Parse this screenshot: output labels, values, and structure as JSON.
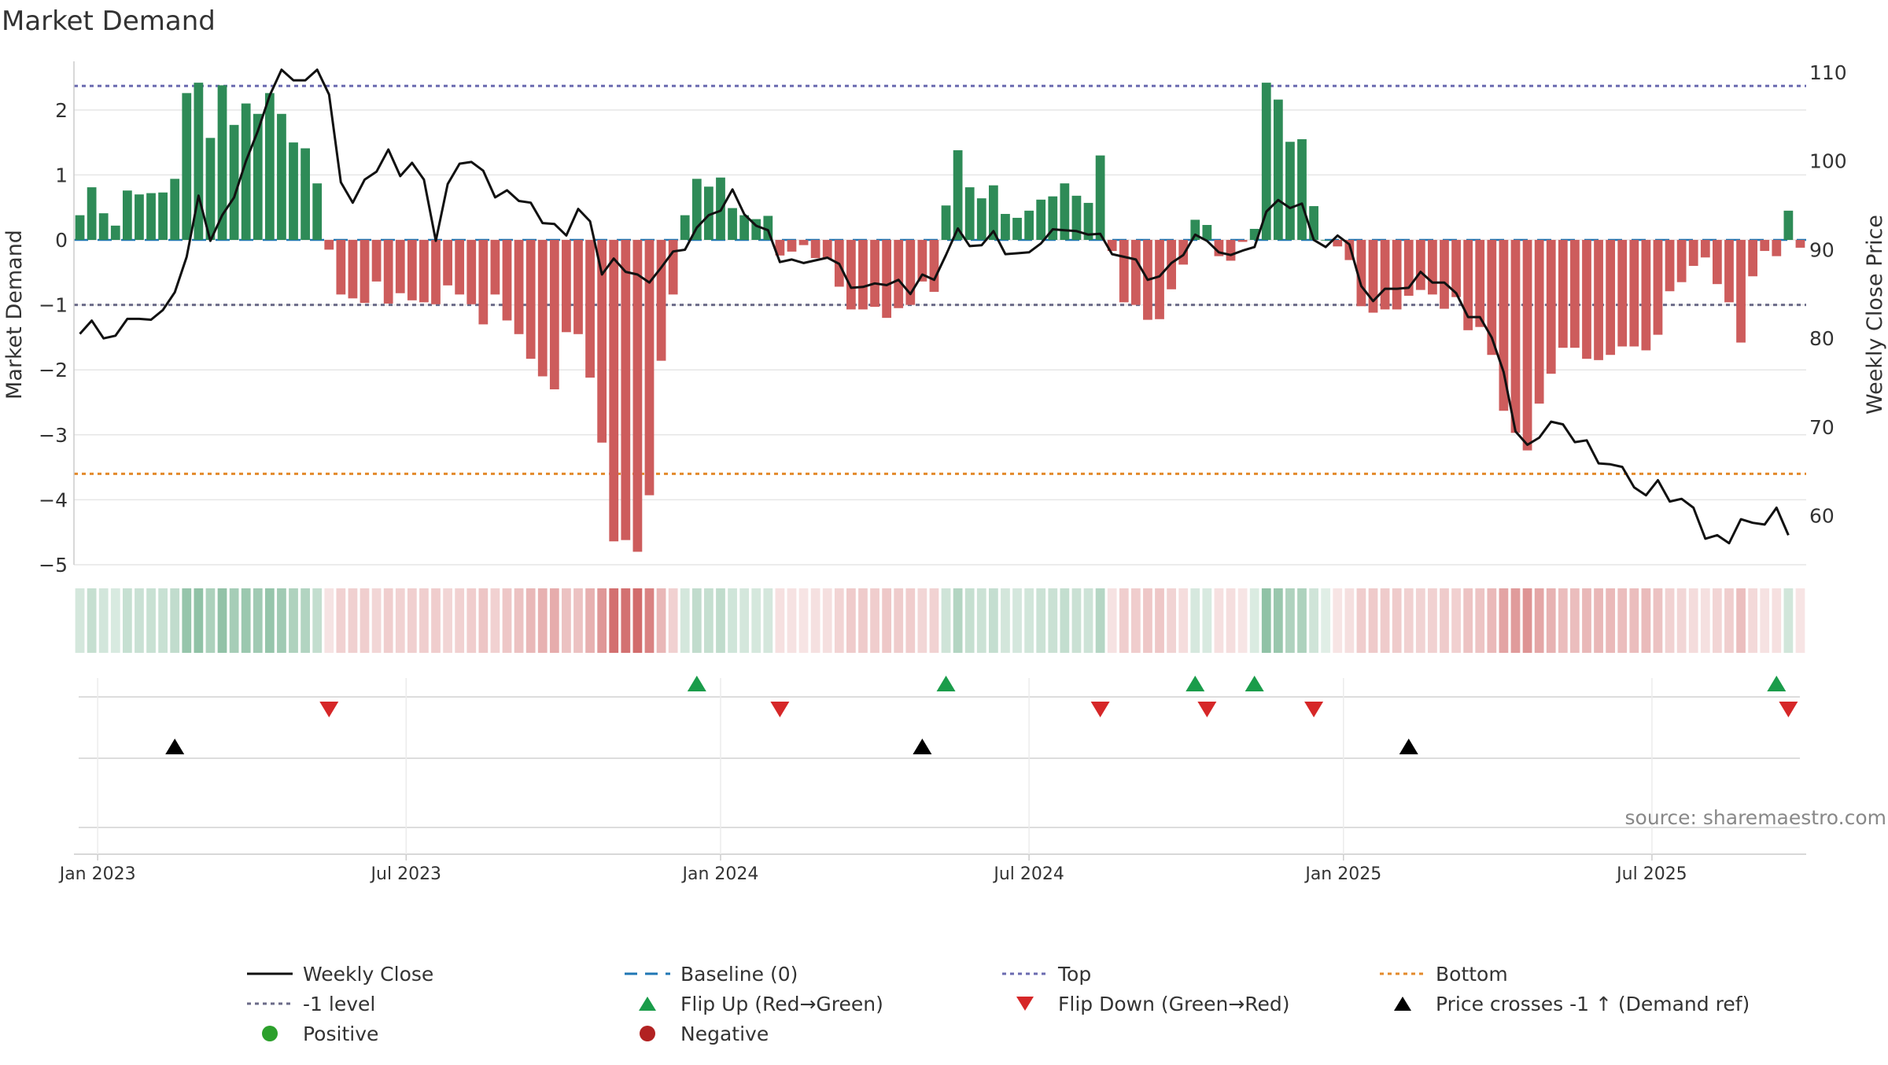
{
  "chart_data": {
    "type": "bar",
    "title": "Market Demand",
    "ylabel_left": "Market Demand",
    "ylabel_right": "Weekly Close Price",
    "ylim_left": [
      -5.0,
      2.7
    ],
    "ylim_right": [
      55,
      110
    ],
    "yticks_left": [
      2,
      1,
      0,
      -1,
      -2,
      -3,
      -4,
      -5
    ],
    "yticks_left_labels": [
      "2",
      "1",
      "0",
      "−1",
      "−2",
      "−3",
      "−4",
      "−5"
    ],
    "yticks_right": [
      110,
      100,
      90,
      80,
      70,
      60
    ],
    "xaxis": {
      "start_week": "2023-01-02",
      "weeks": 146,
      "ticks": [
        {
          "label": "Jan 2023",
          "week": 2
        },
        {
          "label": "Jul 2023",
          "week": 28
        },
        {
          "label": "Jan 2024",
          "week": 54.5
        },
        {
          "label": "Jul 2024",
          "week": 80.5
        },
        {
          "label": "Jan 2025",
          "week": 107
        },
        {
          "label": "Jul 2025",
          "week": 133
        }
      ]
    },
    "reference_lines": {
      "top": 2.37,
      "minus_one_level": -1.0,
      "bottom": -3.6,
      "baseline": 0
    },
    "series": [
      {
        "name": "Market Demand",
        "kind": "bar",
        "values": [
          0.38,
          0.81,
          0.41,
          0.22,
          0.76,
          0.7,
          0.72,
          0.73,
          0.94,
          2.26,
          2.42,
          1.57,
          2.38,
          1.77,
          2.1,
          1.94,
          2.26,
          1.94,
          1.5,
          1.41,
          0.87,
          -0.15,
          -0.84,
          -0.9,
          -0.97,
          -0.64,
          -0.98,
          -0.82,
          -0.93,
          -0.96,
          -0.99,
          -0.7,
          -0.84,
          -0.99,
          -1.3,
          -0.84,
          -1.24,
          -1.45,
          -1.83,
          -2.1,
          -2.3,
          -1.42,
          -1.45,
          -2.12,
          -3.12,
          -4.64,
          -4.62,
          -4.8,
          -3.93,
          -1.86,
          -0.84,
          0.38,
          0.94,
          0.82,
          0.96,
          0.49,
          0.38,
          0.32,
          0.37,
          -0.24,
          -0.18,
          -0.08,
          -0.28,
          -0.29,
          -0.72,
          -1.07,
          -1.07,
          -1.03,
          -1.2,
          -1.05,
          -1.0,
          -0.64,
          -0.8,
          0.53,
          1.38,
          0.81,
          0.64,
          0.84,
          0.4,
          0.34,
          0.45,
          0.62,
          0.67,
          0.87,
          0.68,
          0.57,
          1.3,
          -0.17,
          -0.96,
          -1.0,
          -1.23,
          -1.22,
          -0.76,
          -0.38,
          0.31,
          0.23,
          -0.25,
          -0.32,
          -0.03,
          0.17,
          2.42,
          2.16,
          1.51,
          1.55,
          0.52,
          0.0,
          -0.1,
          -0.31,
          -1.02,
          -1.12,
          -1.07,
          -1.07,
          -0.86,
          -0.77,
          -0.84,
          -1.06,
          -0.88,
          -1.39,
          -1.34,
          -1.77,
          -2.63,
          -2.97,
          -3.24,
          -2.52,
          -2.06,
          -1.66,
          -1.66,
          -1.83,
          -1.85,
          -1.77,
          -1.64,
          -1.64,
          -1.7,
          -1.46,
          -0.79,
          -0.65,
          -0.4,
          -0.27,
          -0.68,
          -0.96,
          -1.58,
          -0.56,
          -0.17,
          -0.25,
          0.45,
          -0.12
        ]
      },
      {
        "name": "Weekly Close",
        "kind": "line",
        "axis": "right",
        "values": [
          80.5,
          82.0,
          80.0,
          80.3,
          82.2,
          82.2,
          82.1,
          83.2,
          85.2,
          89.2,
          96.1,
          91.0,
          93.9,
          95.9,
          100.0,
          103.4,
          107.4,
          110.3,
          109.1,
          109.1,
          110.3,
          107.5,
          97.6,
          95.3,
          97.9,
          98.8,
          101.3,
          98.3,
          99.8,
          97.9,
          91.0,
          97.4,
          99.7,
          99.9,
          98.9,
          95.9,
          96.7,
          95.5,
          95.3,
          93.0,
          92.9,
          91.6,
          94.6,
          93.2,
          87.2,
          89.0,
          87.5,
          87.2,
          86.3,
          88.0,
          89.8,
          90.0,
          92.5,
          93.9,
          94.4,
          96.8,
          94.0,
          92.7,
          92.2,
          88.6,
          88.9,
          88.5,
          88.8,
          89.1,
          88.4,
          85.7,
          85.8,
          86.2,
          86.0,
          86.6,
          85.0,
          87.2,
          86.6,
          89.4,
          92.4,
          90.4,
          90.5,
          92.1,
          89.5,
          89.6,
          89.7,
          90.7,
          92.3,
          92.2,
          92.1,
          91.7,
          91.8,
          89.5,
          89.2,
          88.9,
          86.6,
          87.0,
          88.5,
          89.4,
          91.7,
          91.0,
          89.7,
          89.4,
          89.9,
          90.3,
          94.3,
          95.6,
          94.7,
          95.2,
          91.1,
          90.3,
          91.6,
          90.6,
          85.9,
          84.2,
          85.6,
          85.6,
          85.7,
          87.5,
          86.3,
          86.3,
          85.1,
          82.4,
          82.4,
          80.1,
          76.2,
          69.5,
          68.0,
          68.8,
          70.6,
          70.3,
          68.3,
          68.5,
          65.9,
          65.8,
          65.5,
          63.2,
          62.3,
          64.0,
          61.6,
          61.9,
          60.9,
          57.4,
          57.8,
          56.9,
          59.6,
          59.2,
          59.0,
          60.9,
          57.8
        ]
      }
    ],
    "flip_up_weeks": [
      52,
      73,
      94,
      99,
      143
    ],
    "flip_down_weeks": [
      21,
      59,
      86,
      95,
      104,
      144
    ],
    "price_cross_weeks": [
      8,
      71,
      112
    ],
    "legend": {
      "items": [
        {
          "label": "Weekly Close"
        },
        {
          "label": "Baseline (0)"
        },
        {
          "label": "Top"
        },
        {
          "label": "Bottom"
        },
        {
          "label": "-1 level"
        },
        {
          "label": "Flip Up (Red→Green)"
        },
        {
          "label": "Flip Down (Green→Red)"
        },
        {
          "label": "Price crosses -1 ↑ (Demand ref)"
        },
        {
          "label": "Positive"
        },
        {
          "label": "Negative"
        }
      ]
    },
    "source": "source: sharemaestro.com"
  },
  "colors": {
    "pos_bar": "#2e8b57",
    "neg_bar": "#cd5c5c",
    "price_line": "#111111",
    "top_line": "#6b6bb0",
    "minus_one_line": "#6b6b88",
    "bottom_line": "#e38a2b",
    "baseline": "#1f77b4",
    "flip_up": "#1a9c4a",
    "flip_down": "#d62728",
    "cross": "#000000",
    "positive_dot": "#2ca02c",
    "negative_dot": "#b22222",
    "grid": "#e6e6e6",
    "axis": "#cccccc",
    "text": "#333333",
    "source_text": "#888888"
  }
}
